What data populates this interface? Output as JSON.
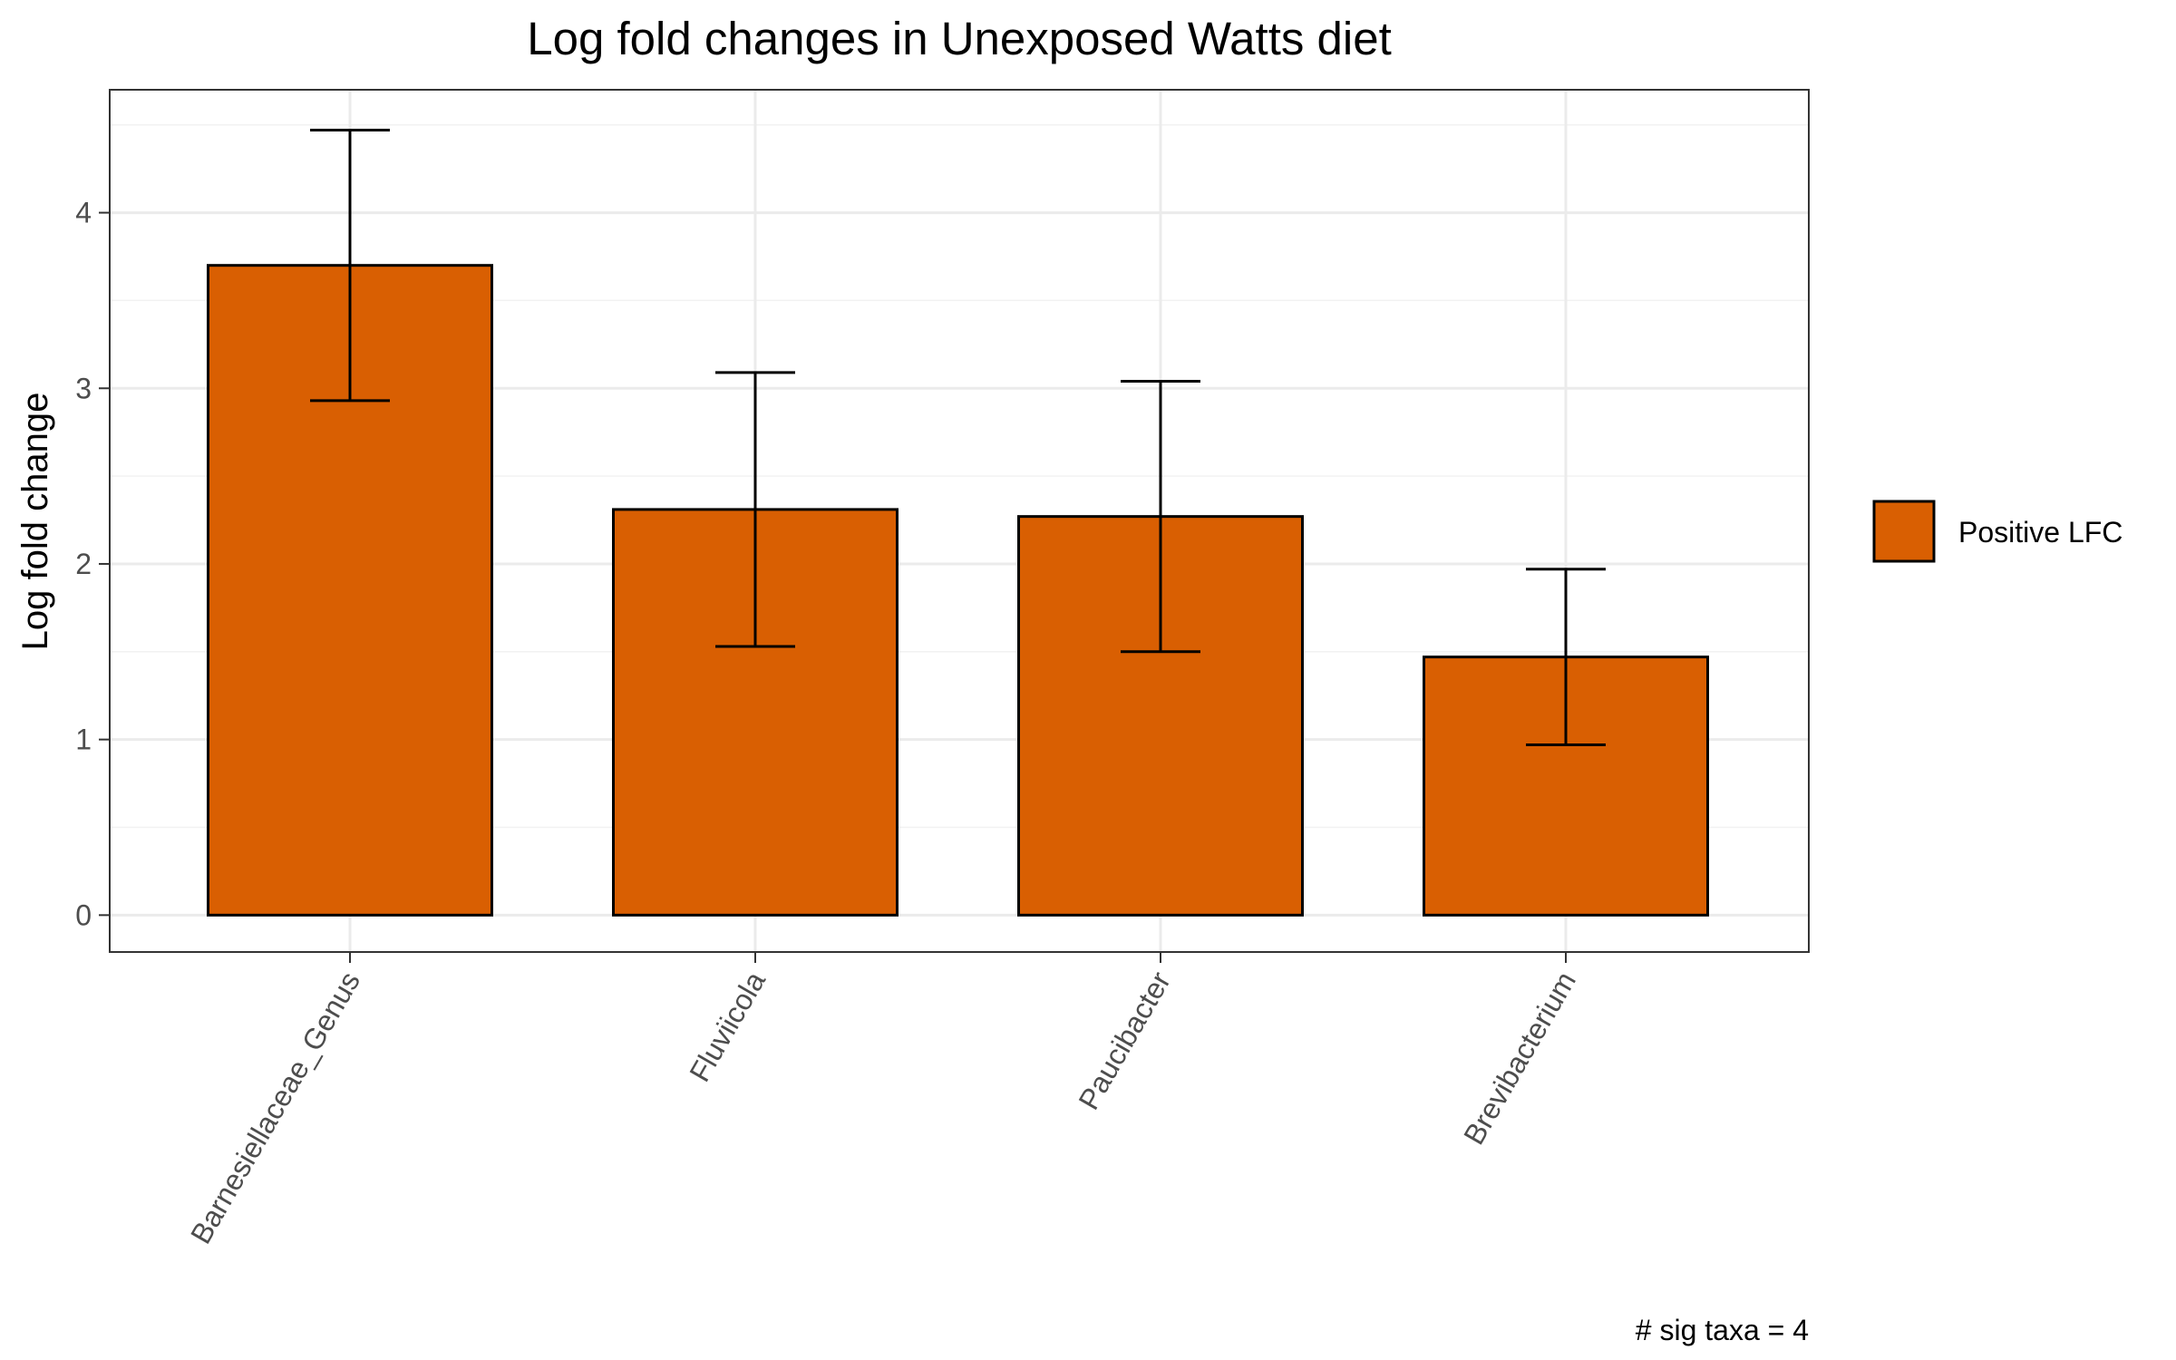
{
  "chart_data": {
    "type": "bar",
    "title": "Log fold changes in Unexposed Watts diet",
    "xlabel": "",
    "ylabel": "Log fold change",
    "categories": [
      "Barnesiellaceae_Genus",
      "Fluviicola",
      "Paucibacter",
      "Brevibacterium"
    ],
    "series": [
      {
        "name": "Positive LFC",
        "values": [
          3.7,
          2.31,
          2.27,
          1.47
        ],
        "error_low": [
          2.93,
          1.53,
          1.5,
          0.97
        ],
        "error_high": [
          4.47,
          3.09,
          3.04,
          1.97
        ],
        "color": "#D95F02"
      }
    ],
    "ylim": [
      -0.21,
      4.7
    ],
    "yticks": [
      "0",
      "1",
      "2",
      "3",
      "4"
    ],
    "grid": true,
    "legend_position": "right",
    "caption": "# sig taxa = 4"
  }
}
